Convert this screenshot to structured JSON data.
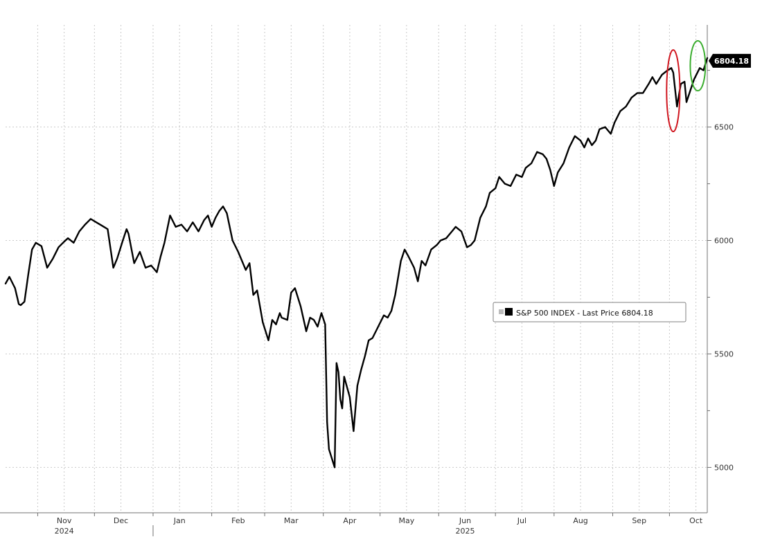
{
  "chart_data": {
    "type": "line",
    "title": "",
    "xlabel": "",
    "ylabel": "",
    "x_range": [
      "2024-10-15",
      "2025-10-21"
    ],
    "ylim": [
      4800,
      6950
    ],
    "y_ticks": [
      5000,
      5500,
      6000,
      6500
    ],
    "y_tick_labels": [
      "5000",
      "5500",
      "6000",
      "6500"
    ],
    "y_minor_ticks": [
      5250,
      5750,
      6250,
      6750
    ],
    "month_ticks": [
      {
        "date": "2024-11-15",
        "label": "Nov"
      },
      {
        "date": "2024-12-15",
        "label": "Dec"
      },
      {
        "date": "2025-01-15",
        "label": "Jan"
      },
      {
        "date": "2025-02-15",
        "label": "Feb"
      },
      {
        "date": "2025-03-15",
        "label": "Mar"
      },
      {
        "date": "2025-04-15",
        "label": "Apr"
      },
      {
        "date": "2025-05-15",
        "label": "May"
      },
      {
        "date": "2025-06-15",
        "label": "Jun"
      },
      {
        "date": "2025-07-15",
        "label": "Jul"
      },
      {
        "date": "2025-08-15",
        "label": "Aug"
      },
      {
        "date": "2025-09-15",
        "label": "Sep"
      },
      {
        "date": "2025-10-15",
        "label": "Oct"
      }
    ],
    "year_labels": [
      {
        "date": "2024-11-15",
        "label": "2024"
      },
      {
        "date": "2025-06-15",
        "label": "2025"
      }
    ],
    "year_separator_date": "2025-01-01",
    "grid": true,
    "legend": {
      "position": "center-right",
      "entries": [
        "S&P 500 INDEX - Last Price 6804.18"
      ]
    },
    "last_price_label": "6804.18",
    "annotations": [
      {
        "type": "ellipse",
        "color": "#d0161f",
        "center": [
          "2025-10-03",
          6660
        ],
        "radii_days": 3.5,
        "radii_value": 180
      },
      {
        "type": "ellipse",
        "color": "#3aad2e",
        "center": [
          "2025-10-16",
          6770
        ],
        "radii_days": 4,
        "radii_value": 110
      }
    ],
    "series": [
      {
        "name": "S&P 500 INDEX - Last Price",
        "color": "#000000",
        "x": [
          "2024-10-15",
          "2024-10-17",
          "2024-10-20",
          "2024-10-22",
          "2024-10-23",
          "2024-10-25",
          "2024-10-27",
          "2024-10-29",
          "2024-10-31",
          "2024-11-03",
          "2024-11-06",
          "2024-11-09",
          "2024-11-12",
          "2024-11-15",
          "2024-11-17",
          "2024-11-20",
          "2024-11-23",
          "2024-11-26",
          "2024-11-29",
          "2024-12-02",
          "2024-12-06",
          "2024-12-08",
          "2024-12-11",
          "2024-12-13",
          "2024-12-16",
          "2024-12-18",
          "2024-12-19",
          "2024-12-22",
          "2024-12-25",
          "2024-12-28",
          "2024-12-31",
          "2025-01-03",
          "2025-01-05",
          "2025-01-07",
          "2025-01-10",
          "2025-01-13",
          "2025-01-16",
          "2025-01-19",
          "2025-01-22",
          "2025-01-25",
          "2025-01-28",
          "2025-01-30",
          "2025-02-01",
          "2025-02-03",
          "2025-02-05",
          "2025-02-07",
          "2025-02-09",
          "2025-02-12",
          "2025-02-15",
          "2025-02-19",
          "2025-02-21",
          "2025-02-23",
          "2025-02-25",
          "2025-02-28",
          "2025-03-03",
          "2025-03-05",
          "2025-03-07",
          "2025-03-09",
          "2025-03-10",
          "2025-03-13",
          "2025-03-15",
          "2025-03-17",
          "2025-03-20",
          "2025-03-23",
          "2025-03-25",
          "2025-03-27",
          "2025-03-29",
          "2025-03-31",
          "2025-04-02",
          "2025-04-03",
          "2025-04-04",
          "2025-04-07",
          "2025-04-08",
          "2025-04-09",
          "2025-04-10",
          "2025-04-11",
          "2025-04-12",
          "2025-04-15",
          "2025-04-17",
          "2025-04-19",
          "2025-04-21",
          "2025-04-23",
          "2025-04-25",
          "2025-04-27",
          "2025-04-30",
          "2025-05-03",
          "2025-05-05",
          "2025-05-07",
          "2025-05-09",
          "2025-05-12",
          "2025-05-14",
          "2025-05-16",
          "2025-05-19",
          "2025-05-21",
          "2025-05-23",
          "2025-05-25",
          "2025-05-28",
          "2025-05-31",
          "2025-06-02",
          "2025-06-05",
          "2025-06-08",
          "2025-06-10",
          "2025-06-13",
          "2025-06-16",
          "2025-06-18",
          "2025-06-20",
          "2025-06-23",
          "2025-06-26",
          "2025-06-28",
          "2025-07-01",
          "2025-07-03",
          "2025-07-06",
          "2025-07-09",
          "2025-07-12",
          "2025-07-15",
          "2025-07-17",
          "2025-07-20",
          "2025-07-23",
          "2025-07-26",
          "2025-07-28",
          "2025-07-30",
          "2025-08-01",
          "2025-08-03",
          "2025-08-06",
          "2025-08-09",
          "2025-08-12",
          "2025-08-15",
          "2025-08-17",
          "2025-08-19",
          "2025-08-21",
          "2025-08-23",
          "2025-08-25",
          "2025-08-28",
          "2025-08-31",
          "2025-09-02",
          "2025-09-05",
          "2025-09-08",
          "2025-09-11",
          "2025-09-14",
          "2025-09-17",
          "2025-09-20",
          "2025-09-22",
          "2025-09-24",
          "2025-09-27",
          "2025-09-30",
          "2025-10-02",
          "2025-10-03",
          "2025-10-05",
          "2025-10-07",
          "2025-10-09",
          "2025-10-10",
          "2025-10-12",
          "2025-10-14",
          "2025-10-17",
          "2025-10-19",
          "2025-10-21"
        ],
        "values": [
          5810,
          5840,
          5790,
          5720,
          5715,
          5730,
          5850,
          5960,
          5990,
          5975,
          5880,
          5920,
          5970,
          5995,
          6010,
          5990,
          6040,
          6070,
          6095,
          6080,
          6060,
          6050,
          5880,
          5920,
          6000,
          6050,
          6030,
          5900,
          5950,
          5880,
          5890,
          5860,
          5930,
          5990,
          6110,
          6060,
          6070,
          6040,
          6080,
          6040,
          6090,
          6110,
          6060,
          6100,
          6130,
          6150,
          6120,
          6000,
          5950,
          5870,
          5900,
          5760,
          5780,
          5640,
          5560,
          5650,
          5630,
          5680,
          5660,
          5650,
          5770,
          5790,
          5710,
          5600,
          5660,
          5650,
          5620,
          5680,
          5630,
          5200,
          5080,
          5000,
          5460,
          5420,
          5300,
          5260,
          5400,
          5310,
          5160,
          5360,
          5430,
          5490,
          5560,
          5570,
          5620,
          5670,
          5660,
          5690,
          5760,
          5910,
          5960,
          5930,
          5880,
          5820,
          5910,
          5890,
          5960,
          5980,
          6000,
          6010,
          6040,
          6060,
          6040,
          5970,
          5980,
          6000,
          6100,
          6150,
          6210,
          6230,
          6280,
          6250,
          6240,
          6290,
          6280,
          6320,
          6340,
          6390,
          6380,
          6360,
          6310,
          6240,
          6300,
          6340,
          6410,
          6460,
          6440,
          6410,
          6450,
          6420,
          6440,
          6490,
          6500,
          6470,
          6520,
          6570,
          6590,
          6630,
          6650,
          6650,
          6690,
          6720,
          6690,
          6730,
          6750,
          6760,
          6740,
          6590,
          6690,
          6700,
          6610,
          6660,
          6710,
          6760,
          6750,
          6804.18
        ]
      }
    ]
  }
}
